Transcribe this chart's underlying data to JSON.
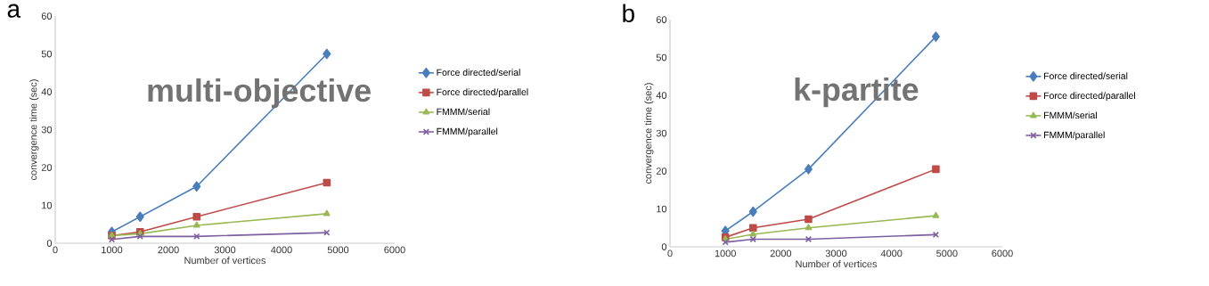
{
  "chart_data": [
    {
      "type": "line",
      "title": "multi-objective",
      "annotations": [
        "a"
      ],
      "xlabel": "Number of vertices",
      "ylabel": "convergence time (sec)",
      "x": [
        1000,
        1500,
        2500,
        4800
      ],
      "xlim": [
        0,
        6000
      ],
      "xticks": [
        0,
        1000,
        2000,
        3000,
        4000,
        5000,
        6000
      ],
      "ylim": [
        0,
        60
      ],
      "yticks": [
        0,
        10,
        20,
        30,
        40,
        50,
        60
      ],
      "grid": false,
      "legend": "right",
      "series": [
        {
          "name": "Force directed/serial",
          "color": "#4a7ebb",
          "marker": "diamond",
          "values": [
            3,
            7,
            15,
            50
          ]
        },
        {
          "name": "Force directed/parallel",
          "color": "#be4b48",
          "marker": "square",
          "values": [
            2,
            3,
            7,
            16
          ]
        },
        {
          "name": "FMMM/serial",
          "color": "#98b954",
          "marker": "triangle",
          "values": [
            2,
            2.5,
            4.7,
            7.8
          ]
        },
        {
          "name": "FMMM/parallel",
          "color": "#7d60a0",
          "marker": "cross",
          "values": [
            1,
            1.8,
            1.8,
            2.8
          ]
        }
      ]
    },
    {
      "type": "line",
      "title": "k-partite",
      "annotations": [
        "b"
      ],
      "xlabel": "Number of vertices",
      "ylabel": "convergence time (sec)",
      "x": [
        1000,
        1500,
        2500,
        4800
      ],
      "xlim": [
        0,
        6000
      ],
      "xticks": [
        0,
        1000,
        2000,
        3000,
        4000,
        5000,
        6000
      ],
      "ylim": [
        0,
        60
      ],
      "yticks": [
        0,
        10,
        20,
        30,
        40,
        50,
        60
      ],
      "grid": false,
      "legend": "right",
      "series": [
        {
          "name": "Force directed/serial",
          "color": "#4a7ebb",
          "marker": "diamond",
          "values": [
            4.2,
            9.3,
            20.5,
            55.5
          ]
        },
        {
          "name": "Force directed/parallel",
          "color": "#be4b48",
          "marker": "square",
          "values": [
            2.5,
            5,
            7.3,
            20.5
          ]
        },
        {
          "name": "FMMM/serial",
          "color": "#98b954",
          "marker": "triangle",
          "values": [
            2,
            3.3,
            5,
            8.2
          ]
        },
        {
          "name": "FMMM/parallel",
          "color": "#7d60a0",
          "marker": "cross",
          "values": [
            1.2,
            2,
            2,
            3.2
          ]
        }
      ]
    }
  ]
}
